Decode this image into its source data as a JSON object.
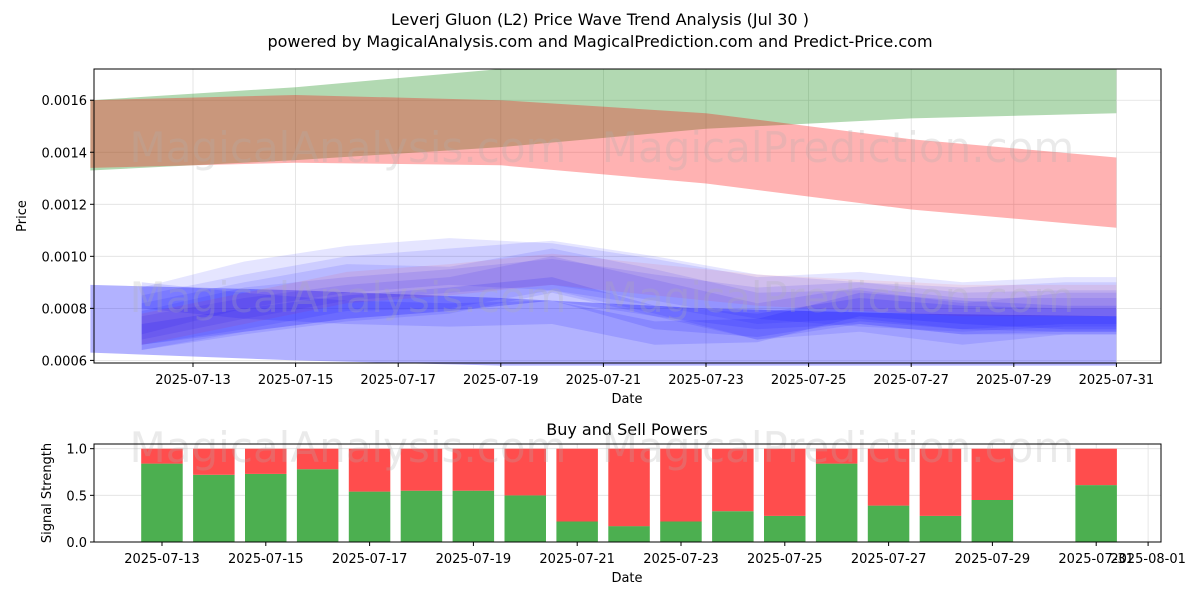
{
  "header": {
    "title": "Leverj Gluon (L2) Price Wave Trend Analysis (Jul 30 )",
    "subtitle": "powered by MagicalAnalysis.com and MagicalPrediction.com and Predict-Price.com"
  },
  "watermarks": {
    "analysis": "MagicalAnalysis.com",
    "prediction": "MagicalPrediction.com"
  },
  "colors": {
    "bull": "#008000",
    "bear": "#ff0000",
    "wave": "#0000ff",
    "buy_bar": "#4caf50",
    "sell_bar": "#ff4d4d",
    "grid": "#e0e0e0"
  },
  "chart_data": [
    {
      "type": "area",
      "title": "",
      "xlabel": "Date",
      "ylabel": "Price",
      "x_range": [
        "2025-07-11",
        "2025-07-31"
      ],
      "ylim": [
        0.00059,
        0.00172
      ],
      "x_ticks": [
        "2025-07-13",
        "2025-07-15",
        "2025-07-17",
        "2025-07-19",
        "2025-07-21",
        "2025-07-23",
        "2025-07-25",
        "2025-07-27",
        "2025-07-29",
        "2025-07-31"
      ],
      "y_ticks": [
        0.0006,
        0.0008,
        0.001,
        0.0012,
        0.0014,
        0.0016
      ],
      "y_tick_labels": [
        "0.0006",
        "0.0008",
        "0.0010",
        "0.0012",
        "0.0014",
        "0.0016"
      ],
      "grid": true,
      "bands": [
        {
          "name": "green band",
          "color": "bull",
          "opacity": 0.3,
          "x": [
            "2025-07-11",
            "2025-07-15",
            "2025-07-19",
            "2025-07-23",
            "2025-07-27",
            "2025-07-31"
          ],
          "upper": [
            0.0016,
            0.00165,
            0.00172,
            0.00172,
            0.00172,
            0.00172
          ],
          "lower": [
            0.00133,
            0.00137,
            0.00142,
            0.00149,
            0.00153,
            0.00155
          ]
        },
        {
          "name": "red band",
          "color": "bear",
          "opacity": 0.3,
          "x": [
            "2025-07-11",
            "2025-07-15",
            "2025-07-19",
            "2025-07-23",
            "2025-07-27",
            "2025-07-31"
          ],
          "upper": [
            0.0016,
            0.00162,
            0.0016,
            0.00155,
            0.00145,
            0.00138
          ],
          "lower": [
            0.00134,
            0.00136,
            0.00135,
            0.00128,
            0.00118,
            0.00111
          ]
        },
        {
          "name": "blue base band",
          "color": "wave",
          "opacity": 0.3,
          "x": [
            "2025-07-11",
            "2025-07-15",
            "2025-07-19",
            "2025-07-23",
            "2025-07-27",
            "2025-07-31"
          ],
          "upper": [
            0.00089,
            0.00087,
            0.00084,
            0.0008,
            0.00078,
            0.00077
          ],
          "lower": [
            0.00063,
            0.0006,
            0.00058,
            0.00058,
            0.00058,
            0.00058
          ]
        }
      ],
      "waves": [
        {
          "color": "wave",
          "opacity": 0.1,
          "x": [
            "2025-07-12",
            "2025-07-14",
            "2025-07-16",
            "2025-07-18",
            "2025-07-20",
            "2025-07-22",
            "2025-07-24",
            "2025-07-26",
            "2025-07-28",
            "2025-07-30",
            "2025-07-31"
          ],
          "upper": [
            0.00088,
            0.00098,
            0.00104,
            0.00107,
            0.00105,
            0.00099,
            0.00092,
            0.00094,
            0.0009,
            0.00092,
            0.00092
          ],
          "lower": [
            0.0007,
            0.0008,
            0.00086,
            0.00089,
            0.00087,
            0.00081,
            0.00074,
            0.00076,
            0.00072,
            0.00074,
            0.00074
          ]
        },
        {
          "color": "wave",
          "opacity": 0.1,
          "x": [
            "2025-07-12",
            "2025-07-14",
            "2025-07-16",
            "2025-07-18",
            "2025-07-20",
            "2025-07-22",
            "2025-07-24",
            "2025-07-26",
            "2025-07-28",
            "2025-07-30",
            "2025-07-31"
          ],
          "upper": [
            0.00085,
            0.00093,
            0.001,
            0.00103,
            0.00106,
            0.001,
            0.00093,
            0.0009,
            0.00088,
            0.0009,
            0.0009
          ],
          "lower": [
            0.00068,
            0.00076,
            0.00083,
            0.00086,
            0.00089,
            0.00083,
            0.00076,
            0.00073,
            0.00071,
            0.00073,
            0.00073
          ]
        },
        {
          "color": "wave",
          "opacity": 0.1,
          "x": [
            "2025-07-12",
            "2025-07-14",
            "2025-07-16",
            "2025-07-18",
            "2025-07-20",
            "2025-07-22",
            "2025-07-24",
            "2025-07-26",
            "2025-07-28",
            "2025-07-30",
            "2025-07-31"
          ],
          "upper": [
            0.00082,
            0.0009,
            0.00097,
            0.00096,
            0.00103,
            0.00095,
            0.00086,
            0.00087,
            0.00082,
            0.00086,
            0.00086
          ],
          "lower": [
            0.00066,
            0.00072,
            0.00079,
            0.0008,
            0.00087,
            0.00078,
            0.00068,
            0.00071,
            0.00066,
            0.0007,
            0.0007
          ]
        },
        {
          "color": "wave",
          "opacity": 0.1,
          "x": [
            "2025-07-12",
            "2025-07-14",
            "2025-07-16",
            "2025-07-18",
            "2025-07-20",
            "2025-07-22",
            "2025-07-24",
            "2025-07-26",
            "2025-07-28",
            "2025-07-30",
            "2025-07-31"
          ],
          "upper": [
            0.00079,
            0.00088,
            0.00092,
            0.00095,
            0.00099,
            0.00093,
            0.00088,
            0.0009,
            0.00086,
            0.00087,
            0.00087
          ],
          "lower": [
            0.00064,
            0.00071,
            0.00076,
            0.00079,
            0.00083,
            0.00077,
            0.00072,
            0.00074,
            0.0007,
            0.00071,
            0.00071
          ]
        },
        {
          "color": "wave",
          "opacity": 0.1,
          "x": [
            "2025-07-12",
            "2025-07-14",
            "2025-07-16",
            "2025-07-18",
            "2025-07-20",
            "2025-07-22",
            "2025-07-24",
            "2025-07-26",
            "2025-07-28",
            "2025-07-30",
            "2025-07-31"
          ],
          "upper": [
            0.00077,
            0.00084,
            0.00089,
            0.00092,
            0.001,
            0.00091,
            0.00082,
            0.00088,
            0.00084,
            0.00084,
            0.00084
          ],
          "lower": [
            0.00064,
            0.0007,
            0.00075,
            0.00078,
            0.00086,
            0.00077,
            0.00068,
            0.00074,
            0.0007,
            0.0007,
            0.0007
          ]
        },
        {
          "color": "bear",
          "opacity": 0.07,
          "x": [
            "2025-07-12",
            "2025-07-14",
            "2025-07-16",
            "2025-07-18",
            "2025-07-20",
            "2025-07-22",
            "2025-07-24",
            "2025-07-26",
            "2025-07-28",
            "2025-07-30",
            "2025-07-31"
          ],
          "upper": [
            0.00078,
            0.00086,
            0.00094,
            0.00097,
            0.00101,
            0.00097,
            0.00093,
            0.00091,
            0.00089,
            0.00089,
            0.00089
          ],
          "lower": [
            0.00066,
            0.00074,
            0.00082,
            0.00085,
            0.00089,
            0.00085,
            0.00081,
            0.00079,
            0.00077,
            0.00077,
            0.00077
          ]
        },
        {
          "color": "wave",
          "opacity": 0.13,
          "x": [
            "2025-07-12",
            "2025-07-14",
            "2025-07-16",
            "2025-07-18",
            "2025-07-20",
            "2025-07-22",
            "2025-07-24",
            "2025-07-26",
            "2025-07-28",
            "2025-07-30",
            "2025-07-31"
          ],
          "upper": [
            0.0009,
            0.00086,
            0.00083,
            0.00082,
            0.00083,
            0.00075,
            0.00076,
            0.00086,
            0.00083,
            0.00081,
            0.00081
          ],
          "lower": [
            0.0008,
            0.00076,
            0.00074,
            0.00073,
            0.00074,
            0.00066,
            0.00067,
            0.00077,
            0.00074,
            0.00072,
            0.00072
          ]
        },
        {
          "color": "wave",
          "opacity": 0.13,
          "x": [
            "2025-07-12",
            "2025-07-14",
            "2025-07-16",
            "2025-07-18",
            "2025-07-20",
            "2025-07-22",
            "2025-07-24",
            "2025-07-26",
            "2025-07-28",
            "2025-07-30",
            "2025-07-31"
          ],
          "upper": [
            0.00074,
            0.0008,
            0.00085,
            0.00088,
            0.00092,
            0.00081,
            0.00078,
            0.00084,
            0.00081,
            0.0008,
            0.0008
          ],
          "lower": [
            0.00066,
            0.00071,
            0.00076,
            0.00079,
            0.00083,
            0.00072,
            0.00069,
            0.00075,
            0.00072,
            0.00071,
            0.00071
          ]
        }
      ]
    },
    {
      "type": "bar",
      "title": "Buy and Sell Powers",
      "xlabel": "Date",
      "ylabel": "Signal Strength",
      "ylim": [
        0,
        1.05
      ],
      "y_ticks": [
        0.0,
        0.5,
        1.0
      ],
      "y_tick_labels": [
        "0.0",
        "0.5",
        "1.0"
      ],
      "grid": true,
      "x_ticks": [
        "2025-07-13",
        "2025-07-15",
        "2025-07-17",
        "2025-07-19",
        "2025-07-21",
        "2025-07-23",
        "2025-07-25",
        "2025-07-27",
        "2025-07-29",
        "2025-07-31",
        "2025-08-01"
      ],
      "x_tick_labels": [
        "2025-07-13",
        "2025-07-15",
        "2025-07-17",
        "2025-07-19",
        "2025-07-21",
        "2025-07-23",
        "2025-07-25",
        "2025-07-27",
        "2025-07-29",
        "2025-07-31",
        "2025-08-01"
      ],
      "categories": [
        "2025-07-13",
        "2025-07-14",
        "2025-07-15",
        "2025-07-16",
        "2025-07-17",
        "2025-07-18",
        "2025-07-19",
        "2025-07-20",
        "2025-07-21",
        "2025-07-22",
        "2025-07-23",
        "2025-07-24",
        "2025-07-25",
        "2025-07-26",
        "2025-07-27",
        "2025-07-28",
        "2025-07-29",
        "2025-07-31"
      ],
      "series": [
        {
          "name": "Buy",
          "color": "buy_bar",
          "values": [
            0.84,
            0.72,
            0.73,
            0.78,
            0.54,
            0.55,
            0.55,
            0.5,
            0.22,
            0.17,
            0.22,
            0.33,
            0.28,
            0.84,
            0.39,
            0.28,
            0.45,
            0.61
          ]
        },
        {
          "name": "Sell",
          "color": "sell_bar",
          "values": [
            0.16,
            0.28,
            0.27,
            0.22,
            0.46,
            0.45,
            0.45,
            0.5,
            0.78,
            0.83,
            0.78,
            0.67,
            0.72,
            0.16,
            0.61,
            0.72,
            0.55,
            0.39
          ]
        }
      ]
    }
  ]
}
